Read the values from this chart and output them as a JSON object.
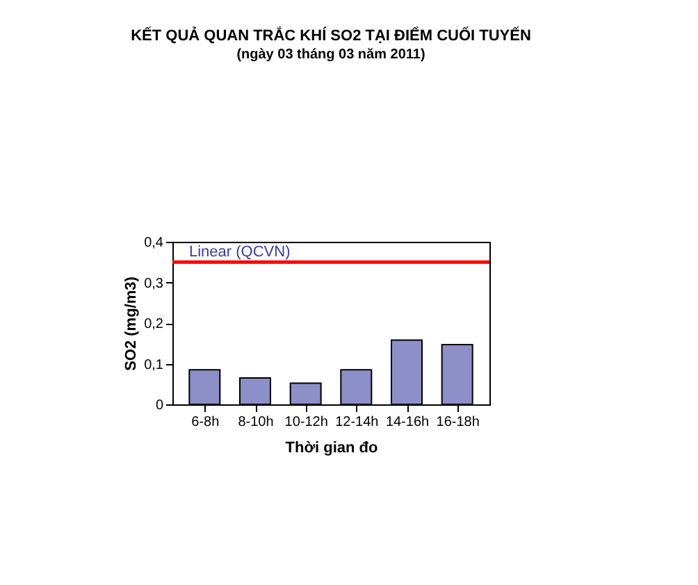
{
  "chart_data": {
    "type": "bar",
    "title": "KẾT QUẢ QUAN TRẮC KHÍ SO2 TẠI ĐIỂM CUỐI TUYẾN",
    "subtitle": "(ngày 03 tháng 03 năm 2011)",
    "xlabel": "Thời gian đo",
    "ylabel": "SO2 (mg/m3)",
    "categories": [
      "6-8h",
      "8-10h",
      "10-12h",
      "12-14h",
      "14-16h",
      "16-18h"
    ],
    "values": [
      0.085,
      0.065,
      0.052,
      0.085,
      0.158,
      0.147
    ],
    "color": "#8c8fc8",
    "ylim": [
      0,
      0.4
    ],
    "yticks": [
      0,
      {
        "value": 0.1,
        "label": "0,1"
      },
      {
        "value": 0.2,
        "label": "0,2"
      },
      {
        "value": 0.3,
        "label": "0,3"
      },
      {
        "value": 0.4,
        "label": "0,4"
      }
    ],
    "ref_lines": [
      {
        "axis": "y",
        "value": 0.35,
        "label": "Linear (QCVN)",
        "color": "#ff0000"
      }
    ],
    "grid": false
  }
}
